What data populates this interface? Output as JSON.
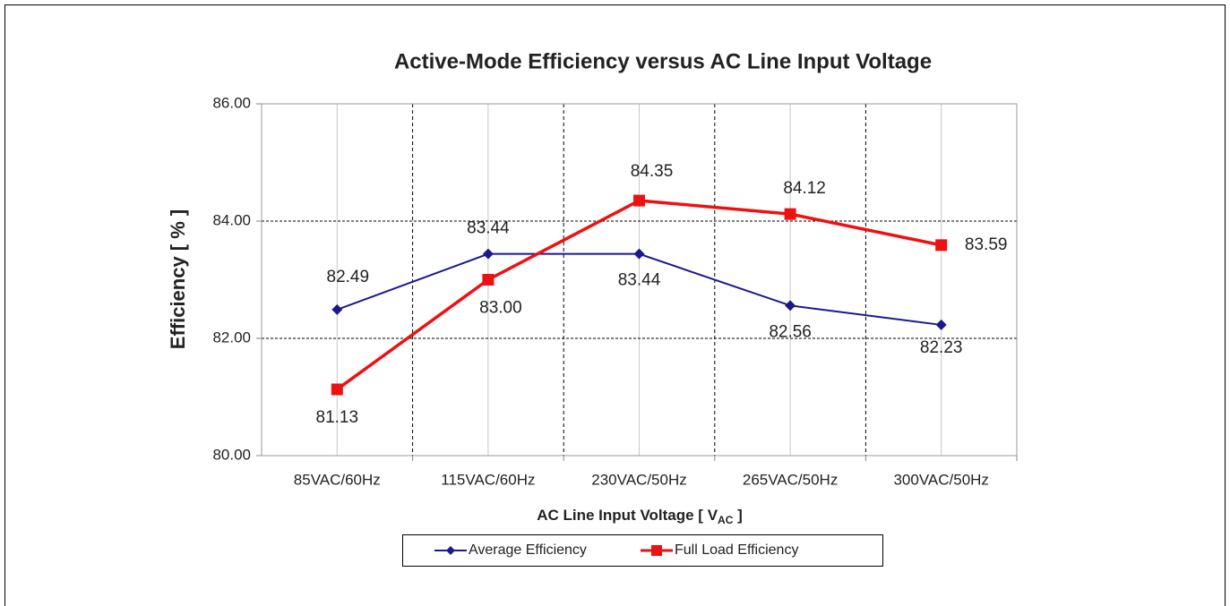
{
  "chart_data": {
    "type": "line",
    "title": "Active-Mode Efficiency versus AC Line Input Voltage",
    "y_label": "Efficiency [ % ]",
    "x_label": [
      "AC Line Input Voltage [ V",
      "AC",
      " ]"
    ],
    "categories": [
      "85VAC/60Hz",
      "115VAC/60Hz",
      "230VAC/50Hz",
      "265VAC/50Hz",
      "300VAC/50Hz"
    ],
    "series": [
      {
        "name": "Average Efficiency",
        "color": "#1a1a8c",
        "marker": "diamond",
        "values": [
          82.49,
          83.44,
          83.44,
          82.56,
          82.23
        ],
        "value_labels": [
          "82.49",
          "83.44",
          "83.44",
          "82.56",
          "82.23"
        ]
      },
      {
        "name": "Full Load Efficiency",
        "color": "#ee1111",
        "marker": "square",
        "values": [
          81.13,
          83.0,
          84.35,
          84.12,
          83.59
        ],
        "value_labels": [
          "81.13",
          "83.00",
          "84.35",
          "84.12",
          "83.59"
        ]
      }
    ],
    "ylim": [
      80,
      86
    ],
    "yticks": [
      {
        "value": 80,
        "label": "80.00"
      },
      {
        "value": 82,
        "label": "82.00"
      },
      {
        "value": 84,
        "label": "84.00"
      },
      {
        "value": 86,
        "label": "86.00"
      }
    ],
    "grid": true,
    "legend": "bottom"
  }
}
